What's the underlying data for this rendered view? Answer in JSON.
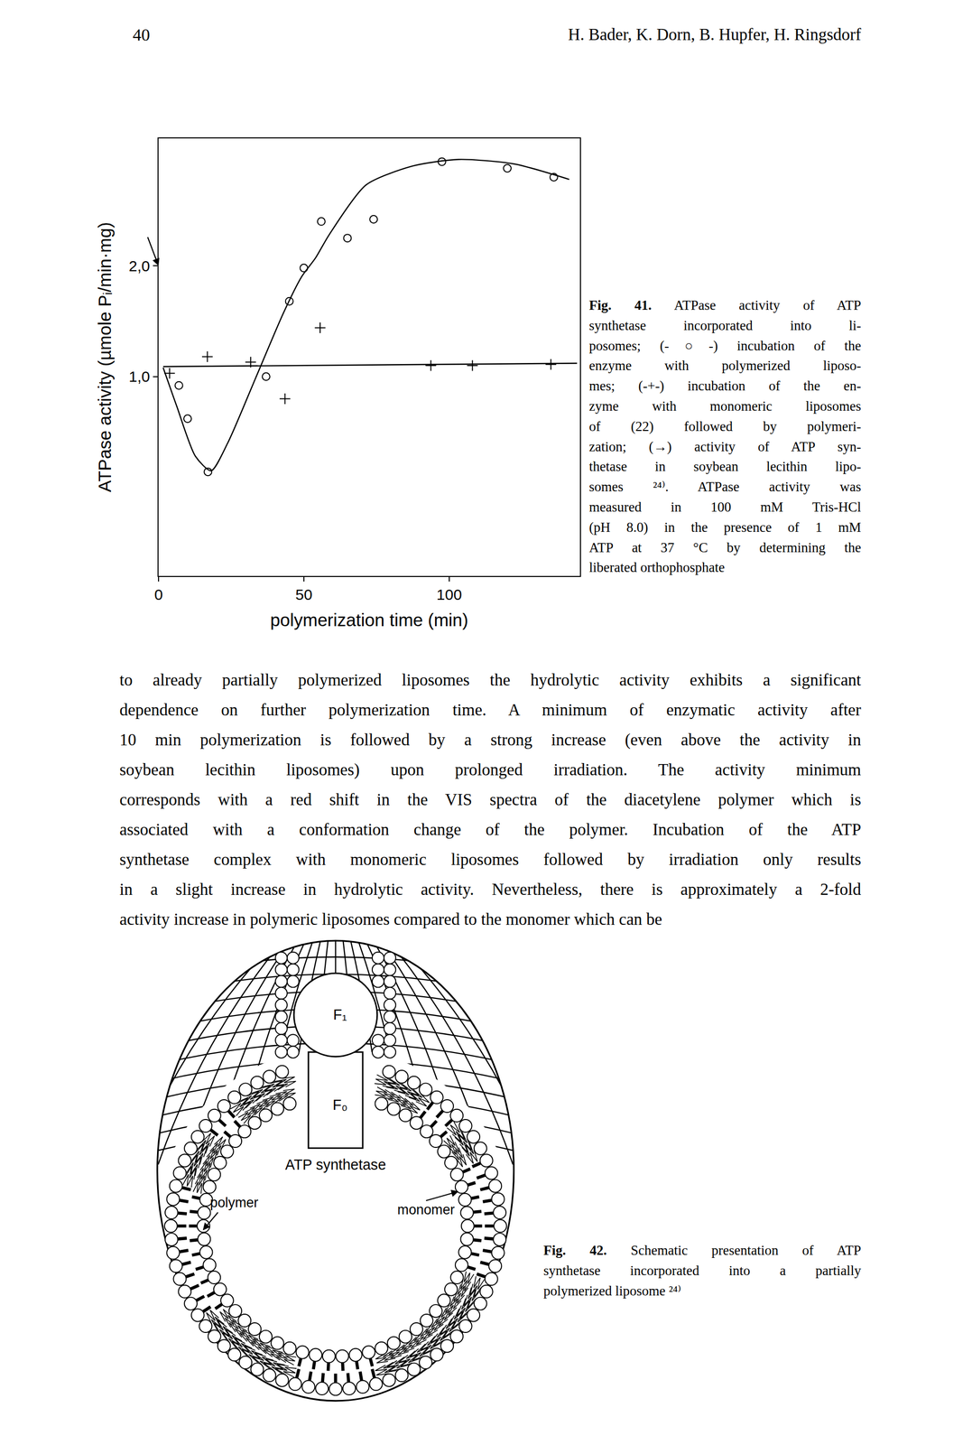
{
  "header": {
    "page_number": "40",
    "authors": "H. Bader, K. Dorn, B. Hupfer, H. Ringsdorf"
  },
  "chart_data": {
    "type": "scatter",
    "x_label": "polymerization time (min)",
    "y_label": "ATPase activity (µmole Pᵢ/min·mg)",
    "xlim": [
      0,
      145
    ],
    "xticks": [
      0,
      50,
      100
    ],
    "ylim": [
      -0.8,
      3.15
    ],
    "yticks": [
      {
        "value": 1,
        "label": "1,0"
      },
      {
        "value": 2,
        "label": "2,0"
      }
    ],
    "grid": false,
    "soybean_lecithin_activity": 2.0,
    "series": [
      {
        "type": "scatter",
        "marker": "circle-open",
        "color": "#000000",
        "x": [
          7,
          10,
          17,
          37,
          45,
          50,
          56,
          65,
          74,
          97.5,
          120,
          136
        ],
        "values": [
          0.92,
          0.62,
          0.14,
          1.0,
          1.68,
          1.98,
          2.4,
          2.25,
          2.42,
          2.94,
          2.88,
          2.8
        ]
      },
      {
        "type": "line",
        "line_style": "solid",
        "color": "#000000",
        "x": [
          1.6,
          6.3,
          12.7,
          18.1,
          23.8,
          33.3,
          42.9,
          49.2,
          54,
          58.7,
          71.4,
          87.3,
          103.2,
          122.2,
          141.3
        ],
        "values": [
          1.08,
          0.73,
          0.28,
          0.15,
          0.4,
          0.98,
          1.57,
          1.9,
          2.07,
          2.28,
          2.73,
          2.9,
          2.96,
          2.92,
          2.78
        ]
      },
      {
        "type": "scatter",
        "marker": "cross-thin-open",
        "color": "#000000",
        "x": [
          3.8,
          16.8,
          31.7,
          43.5,
          55.6,
          93.7,
          108,
          135
        ],
        "values": [
          1.03,
          1.18,
          1.13,
          0.8,
          1.44,
          1.1,
          1.1,
          1.11
        ]
      },
      {
        "type": "line",
        "line_style": "solid",
        "color": "#000000",
        "x": [
          1.6,
          144
        ],
        "values": [
          1.09,
          1.12
        ]
      }
    ]
  },
  "figure41_caption": {
    "label": "Fig. 41.",
    "lines": [
      "ATPase activity of ATP",
      "synthetase incorporated into li-",
      "posomes; (-○-) incubation of the",
      "enzyme with polymerized liposo-",
      "mes; (-+-) incubation of the en-",
      "zyme with monomeric liposomes",
      "of (22) followed by polymeri-",
      "zation; (→) activity of ATP syn-",
      "thetase in soybean lecithin lipo-",
      "somes ²⁴⁾. ATPase activity was",
      "measured in 100 mM Tris-HCl",
      "(pH 8.0) in the presence of 1 mM",
      "ATP at 37 °C by determining the",
      "liberated orthophosphate"
    ]
  },
  "body_text": [
    "to already partially polymerized liposomes the hydrolytic activity exhibits a significant",
    "dependence on further polymerization time. A minimum of enzymatic activity after",
    "10 min polymerization is followed by a strong increase (even above the activity in",
    "soybean lecithin liposomes) upon prolonged irradiation. The activity minimum",
    "corresponds with a red shift in the VIS spectra of the diacetylene polymer which is",
    "associated with a conformation change of the polymer. Incubation of the ATP",
    "synthetase complex with monomeric liposomes followed by irradiation only results",
    "in a slight increase in hydrolytic activity. Nevertheless, there is approximately a 2-fold",
    "activity increase in polymeric liposomes compared to the monomer which can be"
  ],
  "figure42": {
    "labels": {
      "f1": "F₁",
      "f0": "F₀",
      "protein": "ATP synthetase",
      "polymer": "polymer",
      "monomer": "monomer"
    },
    "caption": {
      "label": "Fig. 42.",
      "lines": [
        "Schematic presentation of ATP",
        "synthetase incorporated into a partially",
        "polymerized liposome ²⁴⁾"
      ]
    }
  }
}
